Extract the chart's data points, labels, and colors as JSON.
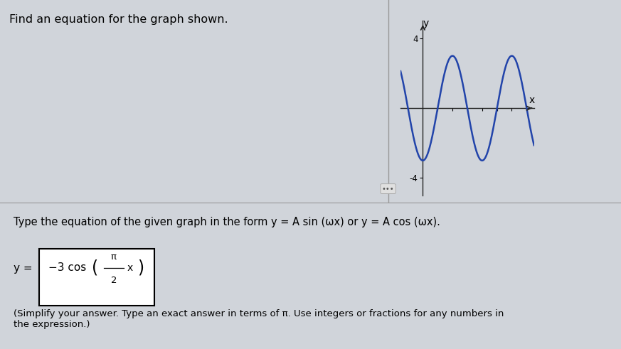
{
  "title": "Find an equation for the graph shown.",
  "instruction": "Type the equation of the given graph in the form y = A sin (ωx) or y = A cos (ωx).",
  "footnote": "(Simplify your answer. Type an exact answer in terms of π. Use integers or fractions for any numbers in\nthe expression.)",
  "amplitude": 3,
  "omega": 1.5707963267948966,
  "x_min": -1.5,
  "x_max": 7.5,
  "y_min": -5,
  "y_max": 5,
  "y_ticks": [
    -4,
    4
  ],
  "x_ticks": [
    -1,
    1,
    2,
    3,
    4,
    5,
    6
  ],
  "curve_color": "#2244aa",
  "axis_color": "#222222",
  "page_bg": "#d0d4da",
  "top_bg": "#c8ccd2",
  "bottom_bg": "#d8dce2",
  "answer_box_color": "#ffffff",
  "divider_color": "#999999",
  "graph_bg": "#d0d4da"
}
